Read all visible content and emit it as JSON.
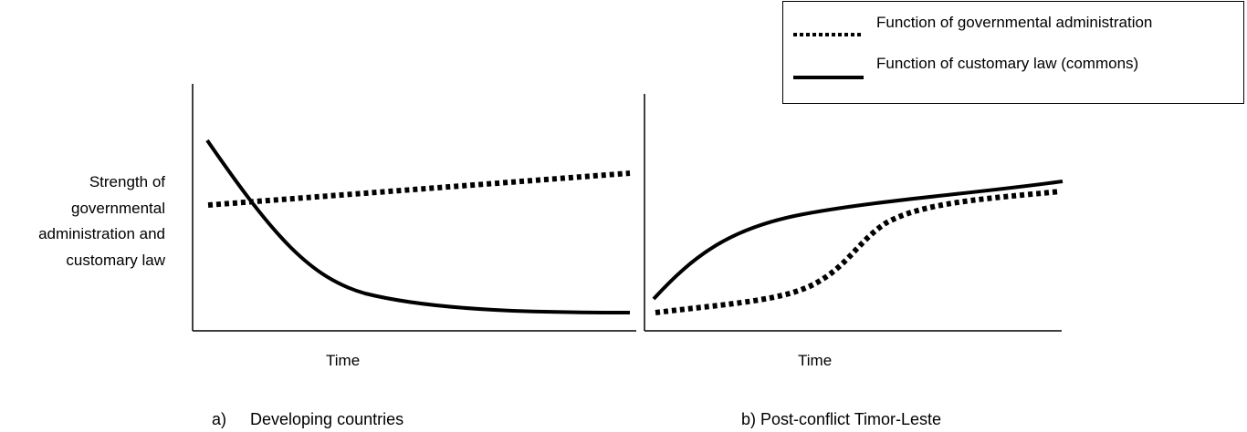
{
  "legend": {
    "items": [
      {
        "label": "Function of governmental administration",
        "line_style": "dotted"
      },
      {
        "label": "Function of customary law (commons)",
        "line_style": "solid"
      }
    ]
  },
  "y_axis_label_lines": [
    "Strength of",
    "governmental",
    "administration and",
    "customary law"
  ],
  "panels": [
    {
      "marker": "a)",
      "title": "Developing countries",
      "x_axis_label": "Time"
    },
    {
      "marker": "",
      "title": "b) Post-conflict Timor-Leste",
      "x_axis_label": "Time"
    }
  ],
  "colors": {
    "line": "#000000",
    "background": "#ffffff"
  }
}
